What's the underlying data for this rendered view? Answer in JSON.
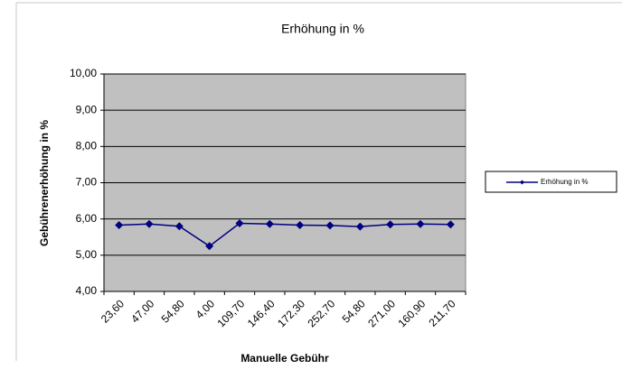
{
  "chart_data": {
    "type": "line",
    "title": "Erhöhung in %",
    "x_label": "Manuelle Gebühr",
    "y_label": "Gebührenerhöhung in %",
    "categories": [
      "23,60",
      "47,00",
      "54,80",
      "4,00",
      "109,70",
      "146,40",
      "172,30",
      "252,70",
      "54,80",
      "271,00",
      "160,90",
      "211,70"
    ],
    "series": [
      {
        "name": "Erhöhung in %",
        "color": "#000080",
        "values": [
          5.83,
          5.86,
          5.8,
          5.25,
          5.88,
          5.86,
          5.83,
          5.82,
          5.79,
          5.85,
          5.86,
          5.85
        ]
      }
    ],
    "ylim": [
      4,
      10
    ],
    "yticks": [
      {
        "value": 4,
        "label": "4,00"
      },
      {
        "value": 5,
        "label": "5,00"
      },
      {
        "value": 6,
        "label": "6,00"
      },
      {
        "value": 7,
        "label": "7,00"
      },
      {
        "value": 8,
        "label": "8,00"
      },
      {
        "value": 9,
        "label": "9,00"
      },
      {
        "value": 10,
        "label": "10,00"
      }
    ],
    "grid": true,
    "legend": "right",
    "plot_background": "#c0c0c0"
  }
}
